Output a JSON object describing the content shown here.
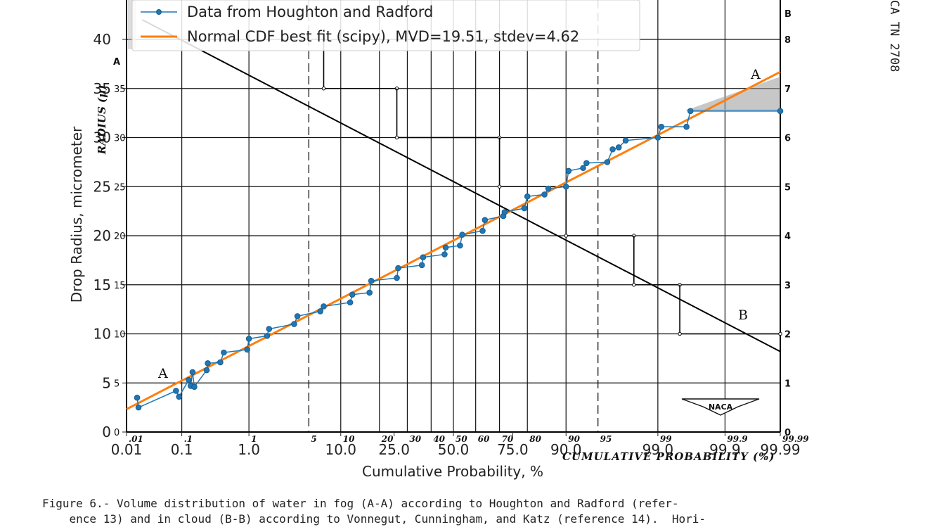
{
  "chart_data": {
    "type": "line",
    "x_scale": "probability",
    "xlabel": "Cumulative Probability, %",
    "ylabel": "Drop Radius, micrometer",
    "ylim": [
      0,
      43
    ],
    "x_ticks": [
      "0.01",
      "0.1",
      "1.0",
      "10.0",
      "25.0",
      "50.0",
      "75.0",
      "90.0",
      "99.0",
      "99.9",
      "99.99"
    ],
    "y_ticks": [
      "0",
      "5",
      "10",
      "15",
      "20",
      "25",
      "30",
      "35",
      "40"
    ],
    "grid": true,
    "legend_position": "top-left",
    "series": [
      {
        "name": "Data from Houghton and Radford",
        "style": "line-markers",
        "color": "#1f77b4",
        "points": [
          [
            0.016,
            3.5
          ],
          [
            0.017,
            2.5
          ],
          [
            0.08,
            4.2
          ],
          [
            0.09,
            3.6
          ],
          [
            0.13,
            5.3
          ],
          [
            0.14,
            4.7
          ],
          [
            0.15,
            6.1
          ],
          [
            0.16,
            4.6
          ],
          [
            0.25,
            6.3
          ],
          [
            0.26,
            7.0
          ],
          [
            0.4,
            7.1
          ],
          [
            0.45,
            8.1
          ],
          [
            0.95,
            8.4
          ],
          [
            1.0,
            9.5
          ],
          [
            1.7,
            9.8
          ],
          [
            1.8,
            10.5
          ],
          [
            3.5,
            11.0
          ],
          [
            3.8,
            11.8
          ],
          [
            6.5,
            12.3
          ],
          [
            7.0,
            12.8
          ],
          [
            12.0,
            13.2
          ],
          [
            12.5,
            14.0
          ],
          [
            17.0,
            14.2
          ],
          [
            17.5,
            15.4
          ],
          [
            26.0,
            15.7
          ],
          [
            26.5,
            16.7
          ],
          [
            36.0,
            17.0
          ],
          [
            36.5,
            17.8
          ],
          [
            46.0,
            18.1
          ],
          [
            46.5,
            18.8
          ],
          [
            53.0,
            19.0
          ],
          [
            54.0,
            20.1
          ],
          [
            63.0,
            20.5
          ],
          [
            64.0,
            21.6
          ],
          [
            71.5,
            22.0
          ],
          [
            72.0,
            22.4
          ],
          [
            79.0,
            22.8
          ],
          [
            80.0,
            24.0
          ],
          [
            85.0,
            24.2
          ],
          [
            86.0,
            24.8
          ],
          [
            90.0,
            25.0
          ],
          [
            90.5,
            26.6
          ],
          [
            93.0,
            26.9
          ],
          [
            93.5,
            27.4
          ],
          [
            96.0,
            27.5
          ],
          [
            96.5,
            28.8
          ],
          [
            97.0,
            29.0
          ],
          [
            97.5,
            29.7
          ],
          [
            99.0,
            30.0
          ],
          [
            99.1,
            31.1
          ],
          [
            99.6,
            31.1
          ],
          [
            99.65,
            32.7
          ],
          [
            99.99,
            32.7
          ]
        ]
      },
      {
        "name": "Normal CDF best fit (scipy), MVD=19.51, stdev=4.62",
        "style": "line",
        "color": "#ff7f0e",
        "mean": 19.51,
        "stdev": 4.62
      }
    ]
  },
  "overlay": {
    "right_ticks": [
      "0",
      "1",
      "2",
      "3",
      "4",
      "5",
      "6",
      "7",
      "8",
      "B"
    ],
    "top_ticks": [
      ".01",
      ".1",
      "1",
      "5",
      "10",
      "20",
      "30",
      "40",
      "50",
      "60",
      "70",
      "80",
      "90",
      "95",
      "99",
      "99.9",
      "99.99"
    ],
    "bottom_label": "CUMULATIVE PROBABILITY (%)",
    "left_axis_label": "RADIUS (μ)",
    "left_ticks": [
      "0",
      "5",
      "10",
      "15",
      "20",
      "25",
      "30",
      "35"
    ],
    "curve_labels": {
      "a_top": "A",
      "a_bottom": "A",
      "a_left": "A",
      "b": "B"
    },
    "logo": "NACA"
  },
  "document": {
    "caption_line1": "Figure 6.- Volume distribution of water in fog (A-A) according to Houghton and Radford (refer-",
    "caption_line2": "    ence 13) and in cloud (B-B) according to Vonnegut, Cunningham, and Katz (reference 14).  Hori-",
    "tn_label": "CA TN 2708"
  }
}
